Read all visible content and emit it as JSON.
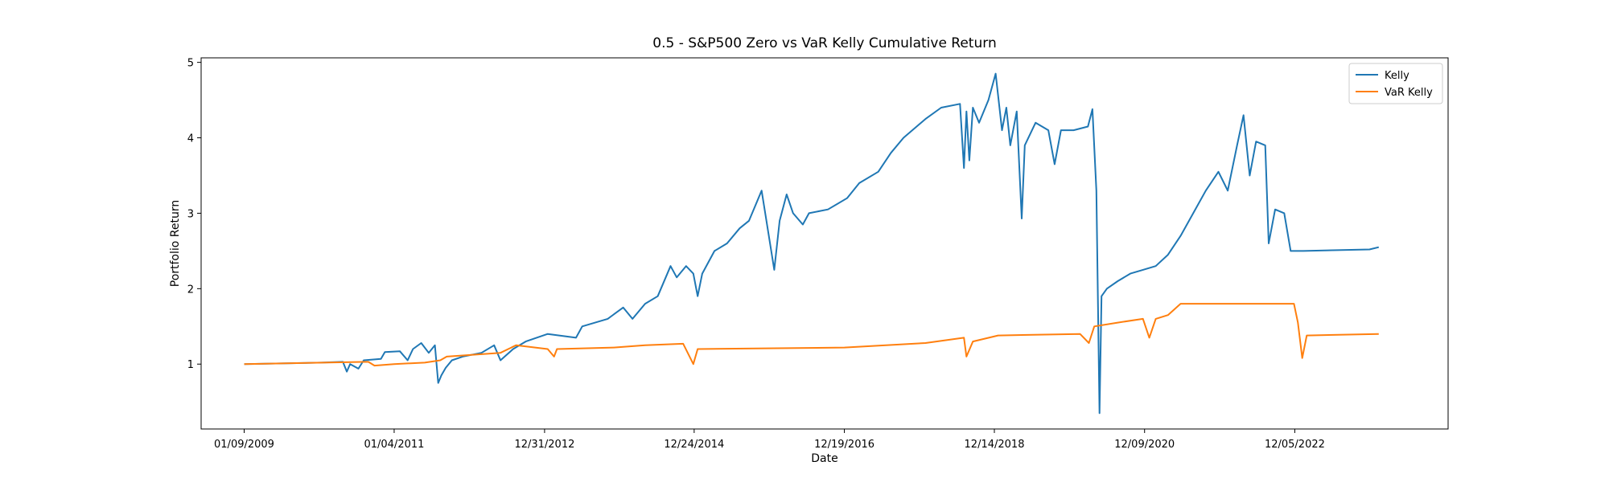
{
  "chart_data": {
    "type": "line",
    "title": "0.5 - S&P500 Zero vs VaR Kelly Cumulative Return",
    "xlabel": "Date",
    "ylabel": "Portfolio Return",
    "xaxis_type": "date",
    "xlim": [
      "2008-06-15",
      "2024-12-15"
    ],
    "ylim": [
      0.14,
      5.06
    ],
    "x_ticks": [
      "2009-01-09",
      "2011-01-04",
      "2012-12-31",
      "2014-12-24",
      "2016-12-19",
      "2018-12-14",
      "2020-12-09",
      "2022-12-05"
    ],
    "x_tick_labels": [
      "01/09/2009",
      "01/04/2011",
      "12/31/2012",
      "12/24/2014",
      "12/19/2016",
      "12/14/2018",
      "12/09/2020",
      "12/05/2022"
    ],
    "y_ticks": [
      1,
      2,
      3,
      4,
      5
    ],
    "y_tick_labels": [
      "1",
      "2",
      "3",
      "4",
      "5"
    ],
    "grid": false,
    "legend_position": "top-right",
    "series": [
      {
        "name": "Kelly",
        "color": "#1f77b4",
        "points": [
          [
            "2009-01-09",
            1.0
          ],
          [
            "2010-01-15",
            1.02
          ],
          [
            "2010-05-01",
            1.03
          ],
          [
            "2010-05-20",
            0.9
          ],
          [
            "2010-06-05",
            1.0
          ],
          [
            "2010-07-15",
            0.94
          ],
          [
            "2010-08-10",
            1.05
          ],
          [
            "2010-11-01",
            1.07
          ],
          [
            "2010-11-20",
            1.16
          ],
          [
            "2011-02-01",
            1.17
          ],
          [
            "2011-03-10",
            1.05
          ],
          [
            "2011-04-05",
            1.2
          ],
          [
            "2011-05-15",
            1.28
          ],
          [
            "2011-06-20",
            1.15
          ],
          [
            "2011-07-20",
            1.25
          ],
          [
            "2011-08-05",
            0.75
          ],
          [
            "2011-08-20",
            0.85
          ],
          [
            "2011-09-10",
            0.95
          ],
          [
            "2011-10-10",
            1.05
          ],
          [
            "2011-12-01",
            1.1
          ],
          [
            "2012-03-01",
            1.15
          ],
          [
            "2012-05-01",
            1.25
          ],
          [
            "2012-06-01",
            1.05
          ],
          [
            "2012-08-01",
            1.2
          ],
          [
            "2012-10-01",
            1.3
          ],
          [
            "2013-01-15",
            1.4
          ],
          [
            "2013-06-01",
            1.35
          ],
          [
            "2013-07-01",
            1.5
          ],
          [
            "2013-11-01",
            1.6
          ],
          [
            "2014-01-15",
            1.75
          ],
          [
            "2014-03-01",
            1.6
          ],
          [
            "2014-05-01",
            1.8
          ],
          [
            "2014-07-01",
            1.9
          ],
          [
            "2014-09-01",
            2.3
          ],
          [
            "2014-10-01",
            2.15
          ],
          [
            "2014-11-15",
            2.3
          ],
          [
            "2014-12-20",
            2.2
          ],
          [
            "2015-01-10",
            1.9
          ],
          [
            "2015-02-01",
            2.2
          ],
          [
            "2015-04-01",
            2.5
          ],
          [
            "2015-06-01",
            2.6
          ],
          [
            "2015-08-01",
            2.8
          ],
          [
            "2015-09-15",
            2.9
          ],
          [
            "2015-11-15",
            3.3
          ],
          [
            "2016-01-15",
            2.25
          ],
          [
            "2016-02-10",
            2.9
          ],
          [
            "2016-03-15",
            3.25
          ],
          [
            "2016-04-15",
            3.0
          ],
          [
            "2016-06-01",
            2.85
          ],
          [
            "2016-07-01",
            3.0
          ],
          [
            "2016-10-01",
            3.05
          ],
          [
            "2017-01-01",
            3.2
          ],
          [
            "2017-03-01",
            3.4
          ],
          [
            "2017-06-01",
            3.55
          ],
          [
            "2017-08-01",
            3.8
          ],
          [
            "2017-10-01",
            4.0
          ],
          [
            "2018-01-15",
            4.25
          ],
          [
            "2018-04-01",
            4.4
          ],
          [
            "2018-07-01",
            4.45
          ],
          [
            "2018-07-20",
            3.6
          ],
          [
            "2018-08-01",
            4.35
          ],
          [
            "2018-08-15",
            3.7
          ],
          [
            "2018-09-01",
            4.4
          ],
          [
            "2018-10-01",
            4.2
          ],
          [
            "2018-11-15",
            4.5
          ],
          [
            "2018-12-20",
            4.85
          ],
          [
            "2019-01-20",
            4.1
          ],
          [
            "2019-02-10",
            4.4
          ],
          [
            "2019-03-01",
            3.9
          ],
          [
            "2019-04-01",
            4.35
          ],
          [
            "2019-04-25",
            2.93
          ],
          [
            "2019-05-10",
            3.9
          ],
          [
            "2019-07-01",
            4.2
          ],
          [
            "2019-09-01",
            4.1
          ],
          [
            "2019-10-01",
            3.65
          ],
          [
            "2019-11-01",
            4.1
          ],
          [
            "2020-01-01",
            4.1
          ],
          [
            "2020-03-10",
            4.15
          ],
          [
            "2020-04-01",
            4.38
          ],
          [
            "2020-04-20",
            3.3
          ],
          [
            "2020-05-05",
            0.35
          ],
          [
            "2020-05-15",
            1.9
          ],
          [
            "2020-06-10",
            2.0
          ],
          [
            "2020-08-01",
            2.1
          ],
          [
            "2020-10-01",
            2.2
          ],
          [
            "2020-12-01",
            2.25
          ],
          [
            "2021-02-01",
            2.3
          ],
          [
            "2021-04-01",
            2.45
          ],
          [
            "2021-06-01",
            2.7
          ],
          [
            "2021-08-01",
            3.0
          ],
          [
            "2021-10-01",
            3.3
          ],
          [
            "2021-12-01",
            3.55
          ],
          [
            "2022-01-15",
            3.3
          ],
          [
            "2022-03-01",
            3.9
          ],
          [
            "2022-04-01",
            4.3
          ],
          [
            "2022-05-01",
            3.5
          ],
          [
            "2022-06-01",
            3.95
          ],
          [
            "2022-07-15",
            3.9
          ],
          [
            "2022-08-01",
            2.6
          ],
          [
            "2022-09-01",
            3.05
          ],
          [
            "2022-10-15",
            3.0
          ],
          [
            "2022-11-15",
            2.5
          ],
          [
            "2023-01-15",
            2.5
          ],
          [
            "2023-12-01",
            2.52
          ],
          [
            "2024-01-15",
            2.55
          ]
        ]
      },
      {
        "name": "VaR Kelly",
        "color": "#ff7f0e",
        "points": [
          [
            "2009-01-09",
            1.0
          ],
          [
            "2010-09-01",
            1.03
          ],
          [
            "2010-10-01",
            0.98
          ],
          [
            "2011-01-04",
            1.0
          ],
          [
            "2011-06-01",
            1.02
          ],
          [
            "2011-08-15",
            1.05
          ],
          [
            "2011-09-15",
            1.1
          ],
          [
            "2012-06-01",
            1.15
          ],
          [
            "2012-08-15",
            1.25
          ],
          [
            "2013-01-15",
            1.2
          ],
          [
            "2013-02-15",
            1.1
          ],
          [
            "2013-03-01",
            1.2
          ],
          [
            "2013-12-01",
            1.22
          ],
          [
            "2014-05-01",
            1.25
          ],
          [
            "2014-11-01",
            1.27
          ],
          [
            "2014-12-20",
            1.0
          ],
          [
            "2015-01-10",
            1.2
          ],
          [
            "2016-12-19",
            1.22
          ],
          [
            "2018-01-15",
            1.28
          ],
          [
            "2018-07-20",
            1.35
          ],
          [
            "2018-08-01",
            1.1
          ],
          [
            "2018-09-01",
            1.3
          ],
          [
            "2019-01-01",
            1.38
          ],
          [
            "2020-02-01",
            1.4
          ],
          [
            "2020-03-15",
            1.28
          ],
          [
            "2020-04-10",
            1.5
          ],
          [
            "2020-08-01",
            1.55
          ],
          [
            "2020-12-01",
            1.6
          ],
          [
            "2021-01-01",
            1.35
          ],
          [
            "2021-02-01",
            1.6
          ],
          [
            "2021-04-01",
            1.65
          ],
          [
            "2021-06-01",
            1.8
          ],
          [
            "2022-12-01",
            1.8
          ],
          [
            "2022-12-20",
            1.55
          ],
          [
            "2023-01-10",
            1.08
          ],
          [
            "2023-02-01",
            1.38
          ],
          [
            "2024-01-15",
            1.4
          ]
        ]
      }
    ]
  }
}
